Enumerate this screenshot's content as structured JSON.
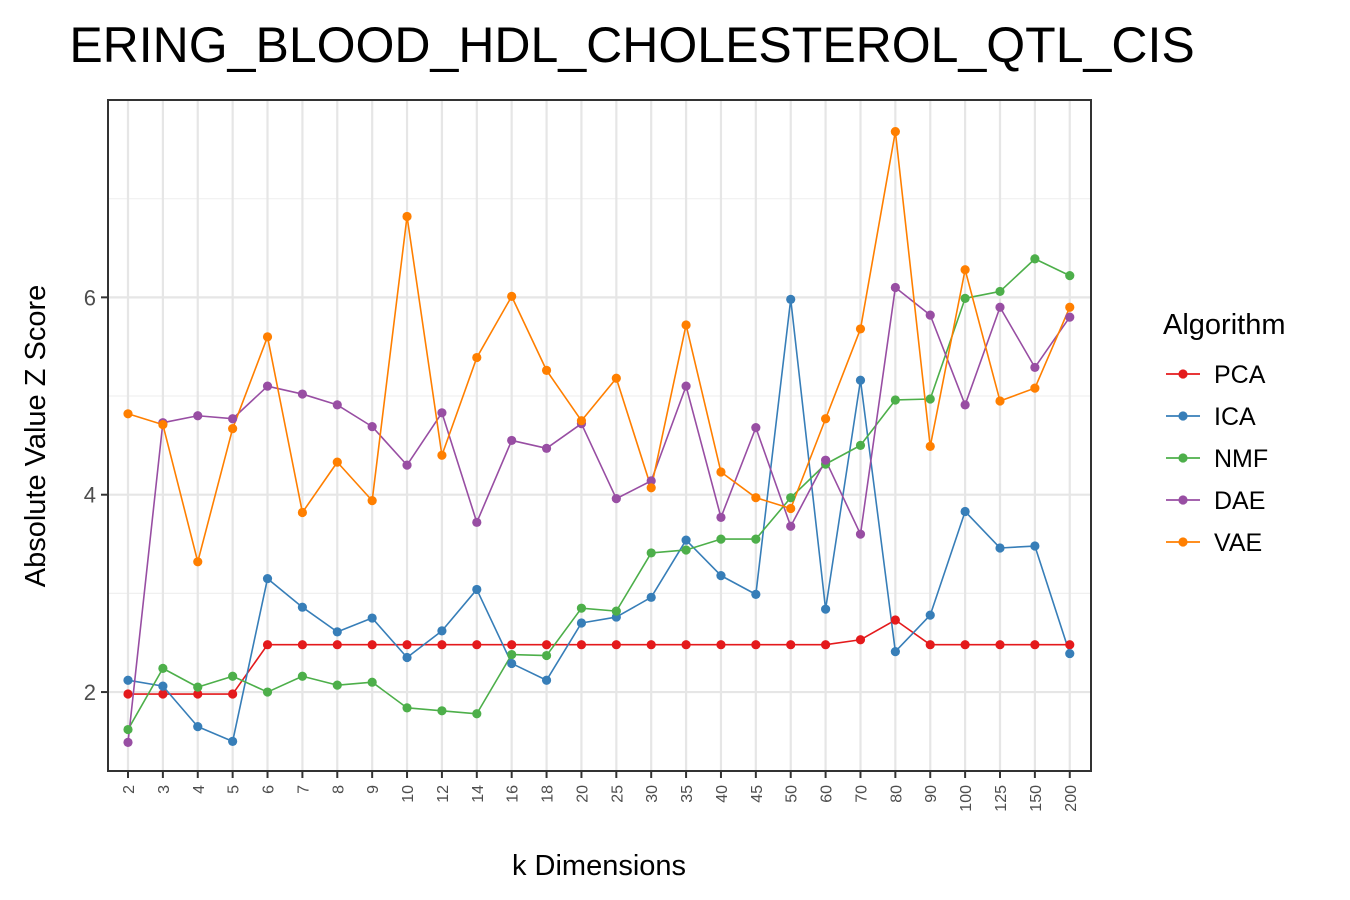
{
  "chart_data": {
    "type": "line",
    "title": "ERING_BLOOD_HDL_CHOLESTEROL_QTL_CIS",
    "xlabel": "k Dimensions",
    "ylabel": "Absolute Value Z Score",
    "categories": [
      "2",
      "3",
      "4",
      "5",
      "6",
      "7",
      "8",
      "9",
      "10",
      "12",
      "14",
      "16",
      "18",
      "20",
      "25",
      "30",
      "35",
      "40",
      "45",
      "50",
      "60",
      "70",
      "80",
      "90",
      "100",
      "125",
      "150",
      "200"
    ],
    "yticks": [
      2,
      4,
      6
    ],
    "ylim": [
      1.2,
      8.0
    ],
    "grid": true,
    "legend": {
      "title": "Algorithm",
      "position": "right"
    },
    "series": [
      {
        "name": "PCA",
        "color": "#e41a1c",
        "values": [
          1.98,
          1.98,
          1.98,
          1.98,
          2.48,
          2.48,
          2.48,
          2.48,
          2.48,
          2.48,
          2.48,
          2.48,
          2.48,
          2.48,
          2.48,
          2.48,
          2.48,
          2.48,
          2.48,
          2.48,
          2.48,
          2.53,
          2.73,
          2.48,
          2.48,
          2.48,
          2.48,
          2.48
        ]
      },
      {
        "name": "ICA",
        "color": "#377eb8",
        "values": [
          2.12,
          2.06,
          1.65,
          1.5,
          3.15,
          2.86,
          2.61,
          2.75,
          2.35,
          2.62,
          3.04,
          2.29,
          2.12,
          2.7,
          2.76,
          2.96,
          3.54,
          3.18,
          2.99,
          5.98,
          2.84,
          5.16,
          2.41,
          2.78,
          3.83,
          3.46,
          3.48,
          2.39
        ]
      },
      {
        "name": "NMF",
        "color": "#4daf4a",
        "values": [
          1.62,
          2.24,
          2.05,
          2.16,
          2.0,
          2.16,
          2.07,
          2.1,
          1.84,
          1.81,
          1.78,
          2.38,
          2.37,
          2.85,
          2.82,
          3.41,
          3.44,
          3.55,
          3.55,
          3.97,
          4.31,
          4.5,
          4.96,
          4.97,
          5.99,
          6.06,
          6.39,
          6.22
        ]
      },
      {
        "name": "DAE",
        "color": "#984ea3",
        "values": [
          1.49,
          4.73,
          4.8,
          4.77,
          5.1,
          5.02,
          4.91,
          4.69,
          4.3,
          4.83,
          3.72,
          4.55,
          4.47,
          4.72,
          3.96,
          4.14,
          5.1,
          3.77,
          4.68,
          3.68,
          4.35,
          3.6,
          6.1,
          5.82,
          4.91,
          5.9,
          5.29,
          5.8
        ]
      },
      {
        "name": "VAE",
        "color": "#ff7f00",
        "values": [
          4.82,
          4.71,
          3.32,
          4.67,
          5.6,
          3.82,
          4.33,
          3.94,
          6.82,
          4.4,
          5.39,
          6.01,
          5.26,
          4.75,
          5.18,
          4.07,
          5.72,
          4.23,
          3.97,
          3.86,
          4.77,
          5.68,
          7.68,
          4.49,
          6.28,
          4.95,
          5.08,
          5.9
        ]
      }
    ]
  }
}
